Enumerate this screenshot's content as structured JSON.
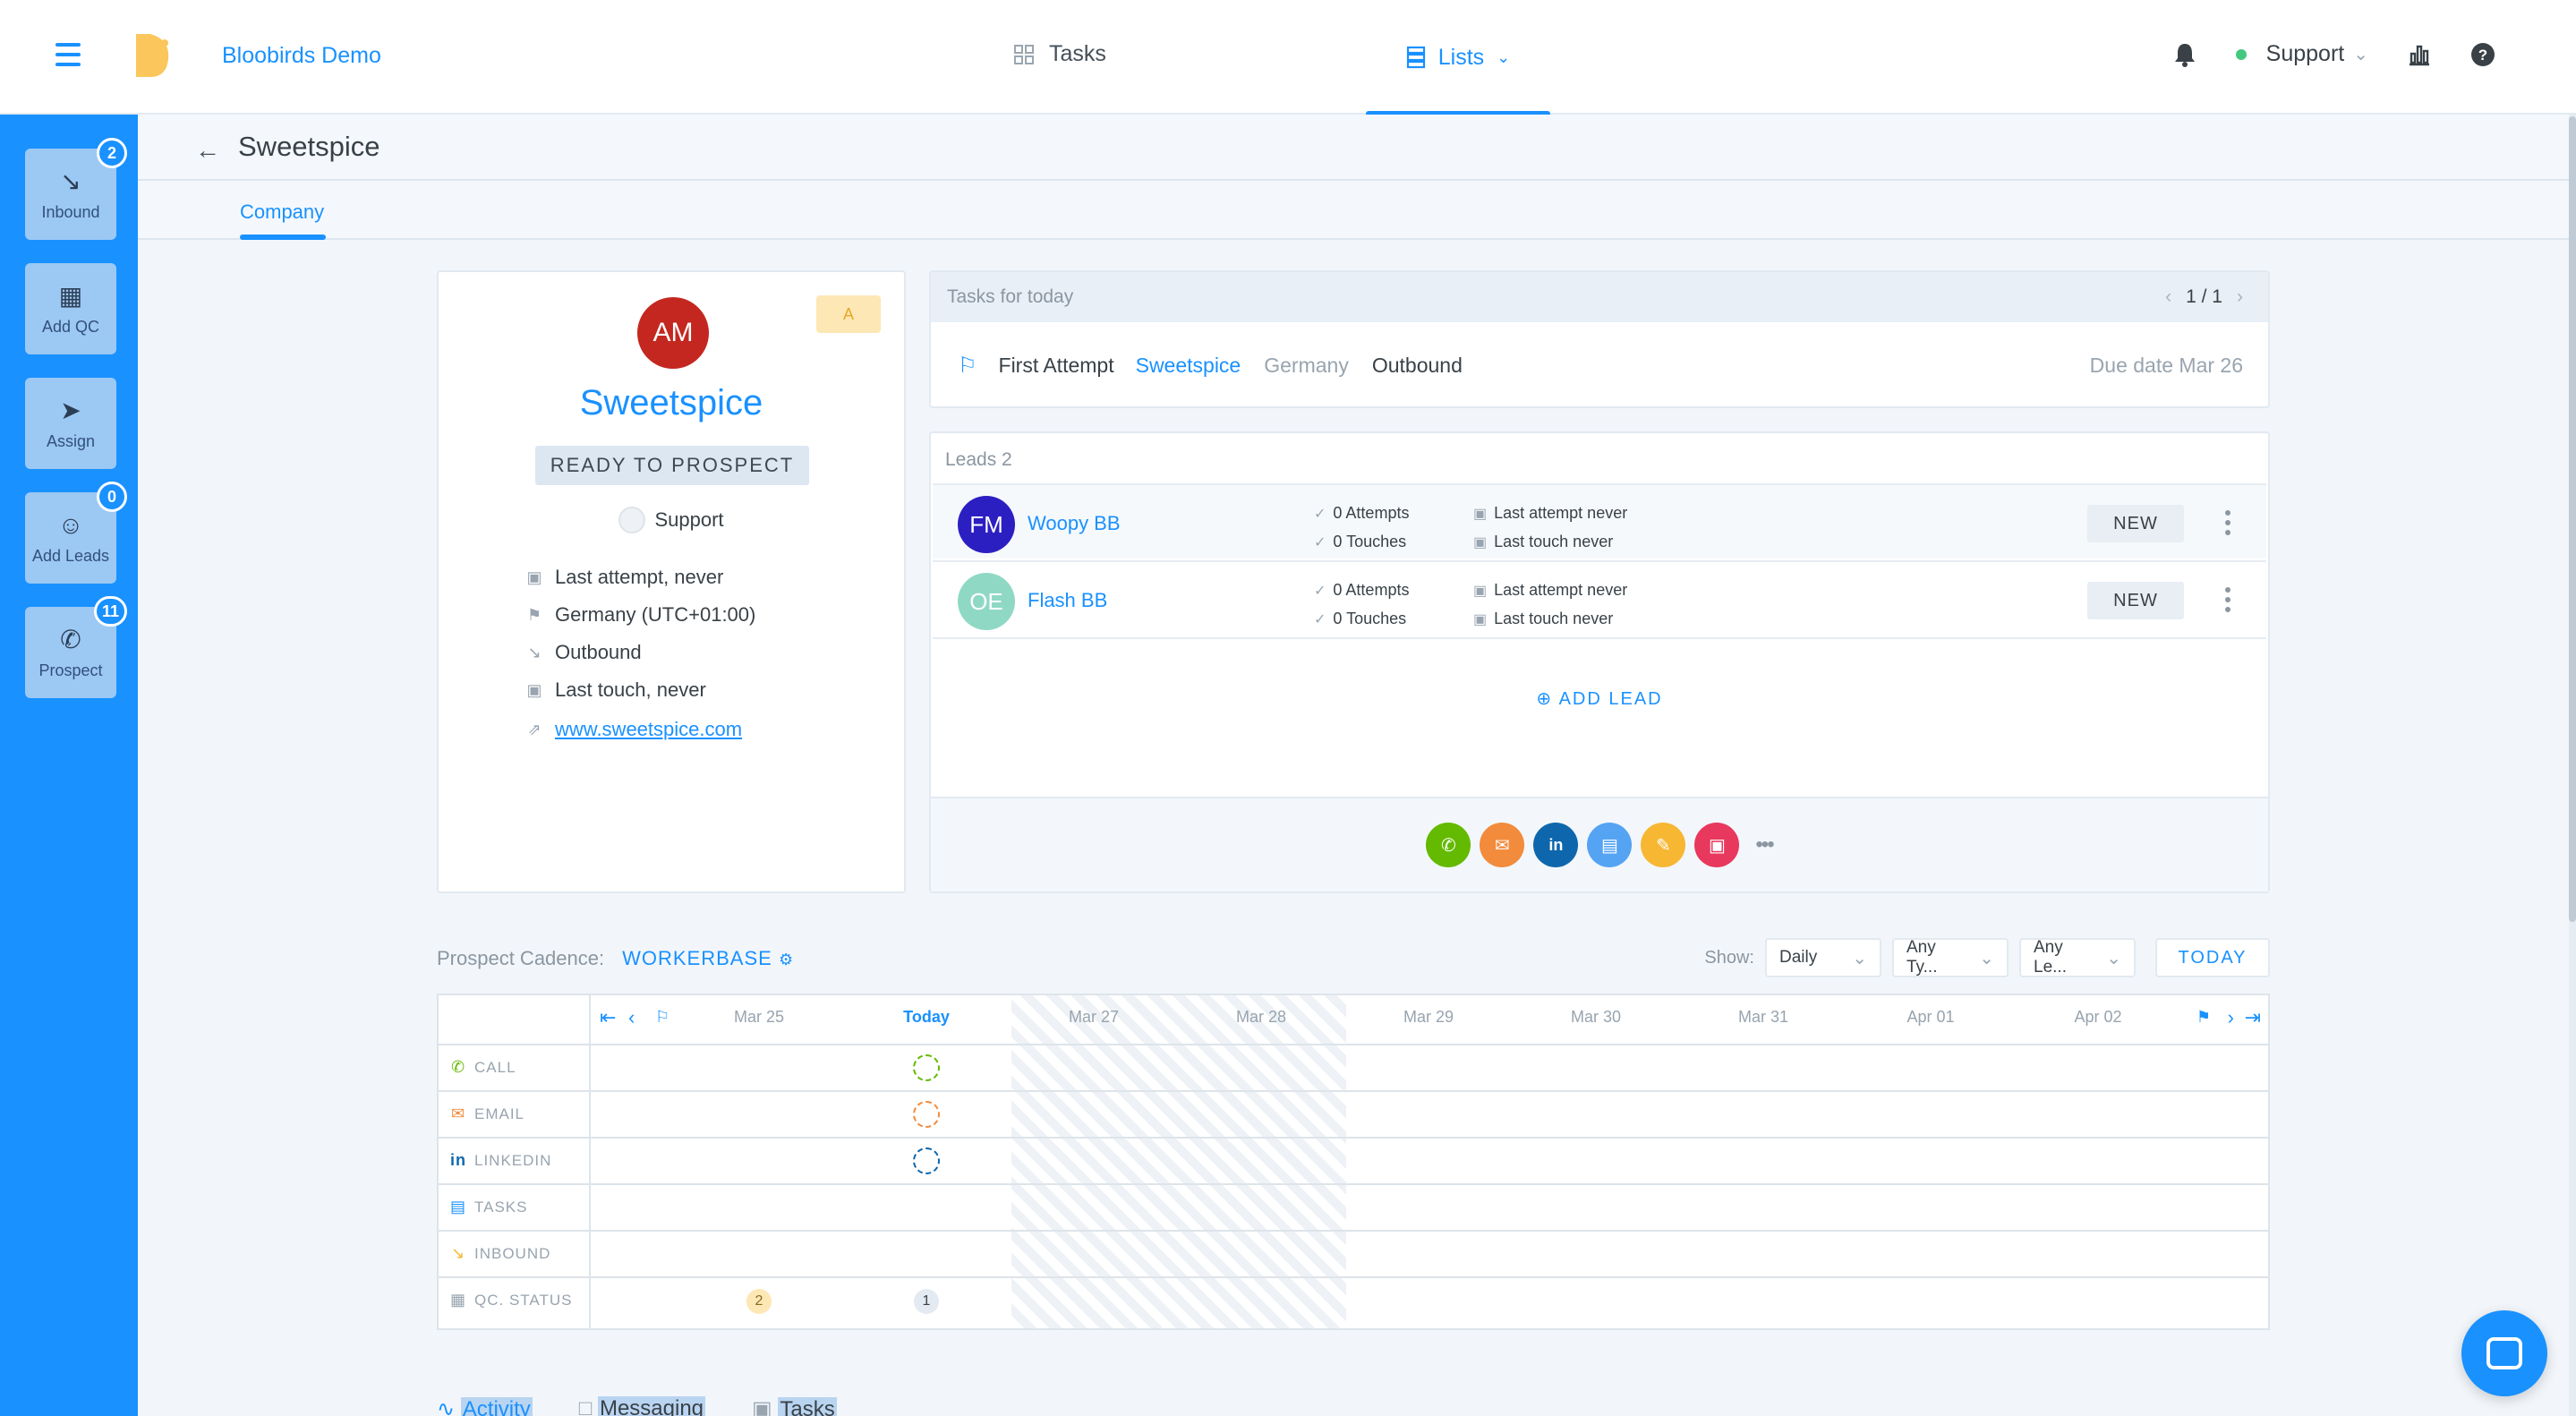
{
  "topbar": {
    "brand": "Bloobirds Demo",
    "nav_tasks": "Tasks",
    "nav_lists": "Lists",
    "user": "Support"
  },
  "sidebar": {
    "items": [
      {
        "label": "Inbound",
        "icon": "arrow-down-right-icon",
        "badge": "2"
      },
      {
        "label": "Add QC",
        "icon": "building-icon",
        "badge": ""
      },
      {
        "label": "Assign",
        "icon": "send-icon",
        "badge": ""
      },
      {
        "label": "Add Leads",
        "icon": "add-user-icon",
        "badge": "0"
      },
      {
        "label": "Prospect",
        "icon": "phone-icon",
        "badge": "11"
      }
    ]
  },
  "page": {
    "title": "Sweetspice",
    "tab": "Company"
  },
  "company": {
    "initials": "AM",
    "name": "Sweetspice",
    "tier": "A",
    "status": "READY TO PROSPECT",
    "assignee": "Support",
    "last_attempt": "Last attempt, never",
    "country": "Germany (UTC+01:00)",
    "source": "Outbound",
    "last_touch": "Last touch, never",
    "website": "www.sweetspice.com"
  },
  "tasks": {
    "header": "Tasks for today",
    "pager": "1 / 1",
    "row": {
      "title": "First Attempt",
      "company": "Sweetspice",
      "country": "Germany",
      "source": "Outbound",
      "due": "Due date Mar 26"
    }
  },
  "leads": {
    "header": "Leads 2",
    "add_label": "ADD LEAD",
    "rows": [
      {
        "initials": "FM",
        "name": "Woopy BB",
        "attempts": "0 Attempts",
        "touches": "0 Touches",
        "last_attempt": "Last attempt never",
        "last_touch": "Last touch never",
        "status": "NEW",
        "color": "#2c1fc2"
      },
      {
        "initials": "OE",
        "name": "Flash BB",
        "attempts": "0 Attempts",
        "touches": "0 Touches",
        "last_attempt": "Last attempt never",
        "last_touch": "Last touch never",
        "status": "NEW",
        "color": "#8fd9c4"
      }
    ]
  },
  "actions": [
    {
      "name": "call-action",
      "color": "#63ba00"
    },
    {
      "name": "email-action",
      "color": "#f28b3c"
    },
    {
      "name": "linkedin-action",
      "color": "#0e67ac"
    },
    {
      "name": "task-action",
      "color": "#55a3f3"
    },
    {
      "name": "note-action",
      "color": "#f7b733"
    },
    {
      "name": "meeting-action",
      "color": "#e8385e"
    }
  ],
  "cadence": {
    "label": "Prospect Cadence:",
    "name": "WORKERBASE",
    "show_label": "Show:",
    "filter_period": "Daily",
    "filter_type": "Any Ty...",
    "filter_lead": "Any Le...",
    "today_btn": "TODAY",
    "days": [
      "Mar 25",
      "Today",
      "Mar 27",
      "Mar 28",
      "Mar 29",
      "Mar 30",
      "Mar 31",
      "Apr 01",
      "Apr 02"
    ],
    "rows": [
      {
        "label": "CALL",
        "icon": "phone-icon",
        "color": "#63ba00"
      },
      {
        "label": "EMAIL",
        "icon": "mail-icon",
        "color": "#f28b3c"
      },
      {
        "label": "LINKEDIN",
        "icon": "linkedin-icon",
        "color": "#0e67ac"
      },
      {
        "label": "TASKS",
        "icon": "task-icon",
        "color": "#1991ff"
      },
      {
        "label": "INBOUND",
        "icon": "arrow-down-right-icon",
        "color": "#f7b733"
      },
      {
        "label": "QC. STATUS",
        "icon": "building-icon",
        "color": "#98a4af"
      }
    ],
    "qc_counts": [
      "2",
      "1"
    ]
  },
  "bottom_tabs": [
    "Activity",
    "Messaging",
    "Tasks"
  ]
}
